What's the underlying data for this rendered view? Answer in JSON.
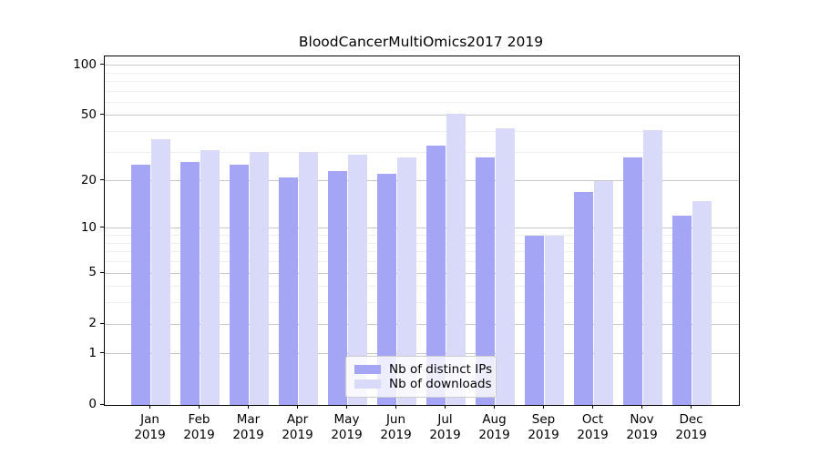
{
  "chart_data": {
    "type": "bar",
    "title": "BloodCancerMultiOmics2017 2019",
    "categories": [
      "Jan",
      "Feb",
      "Mar",
      "Apr",
      "May",
      "Jun",
      "Jul",
      "Aug",
      "Sep",
      "Oct",
      "Nov",
      "Dec"
    ],
    "x_axis": {
      "tick_labels_line2": "2019"
    },
    "series": [
      {
        "name": "Nb of distinct IPs",
        "color": "#a5a5f5",
        "values": [
          25,
          26,
          25,
          21,
          23,
          22,
          33,
          28,
          9,
          17,
          28,
          12
        ]
      },
      {
        "name": "Nb of downloads",
        "color": "#d9d9f9",
        "values": [
          36,
          31,
          30,
          30,
          29,
          28,
          51,
          42,
          9,
          20,
          41,
          15
        ]
      }
    ],
    "y_axis": {
      "scale": "log-plus-one",
      "ticks": [
        0,
        1,
        2,
        5,
        10,
        20,
        50,
        100
      ],
      "tick_labels": [
        "0",
        "1",
        "2",
        "5",
        "10",
        "20",
        "50",
        "100"
      ],
      "minor_gridlines": [
        3,
        4,
        6,
        7,
        8,
        9,
        30,
        40,
        60,
        70,
        80,
        90
      ],
      "range": [
        0,
        115
      ]
    },
    "legend": {
      "position": "lower-center",
      "entries": [
        "Nb of distinct IPs",
        "Nb of downloads"
      ]
    },
    "grid": true,
    "colors": {
      "major_grid": "#c8c8c8",
      "minor_grid": "#efefef",
      "spine": "#000000",
      "background": "#ffffff"
    }
  }
}
